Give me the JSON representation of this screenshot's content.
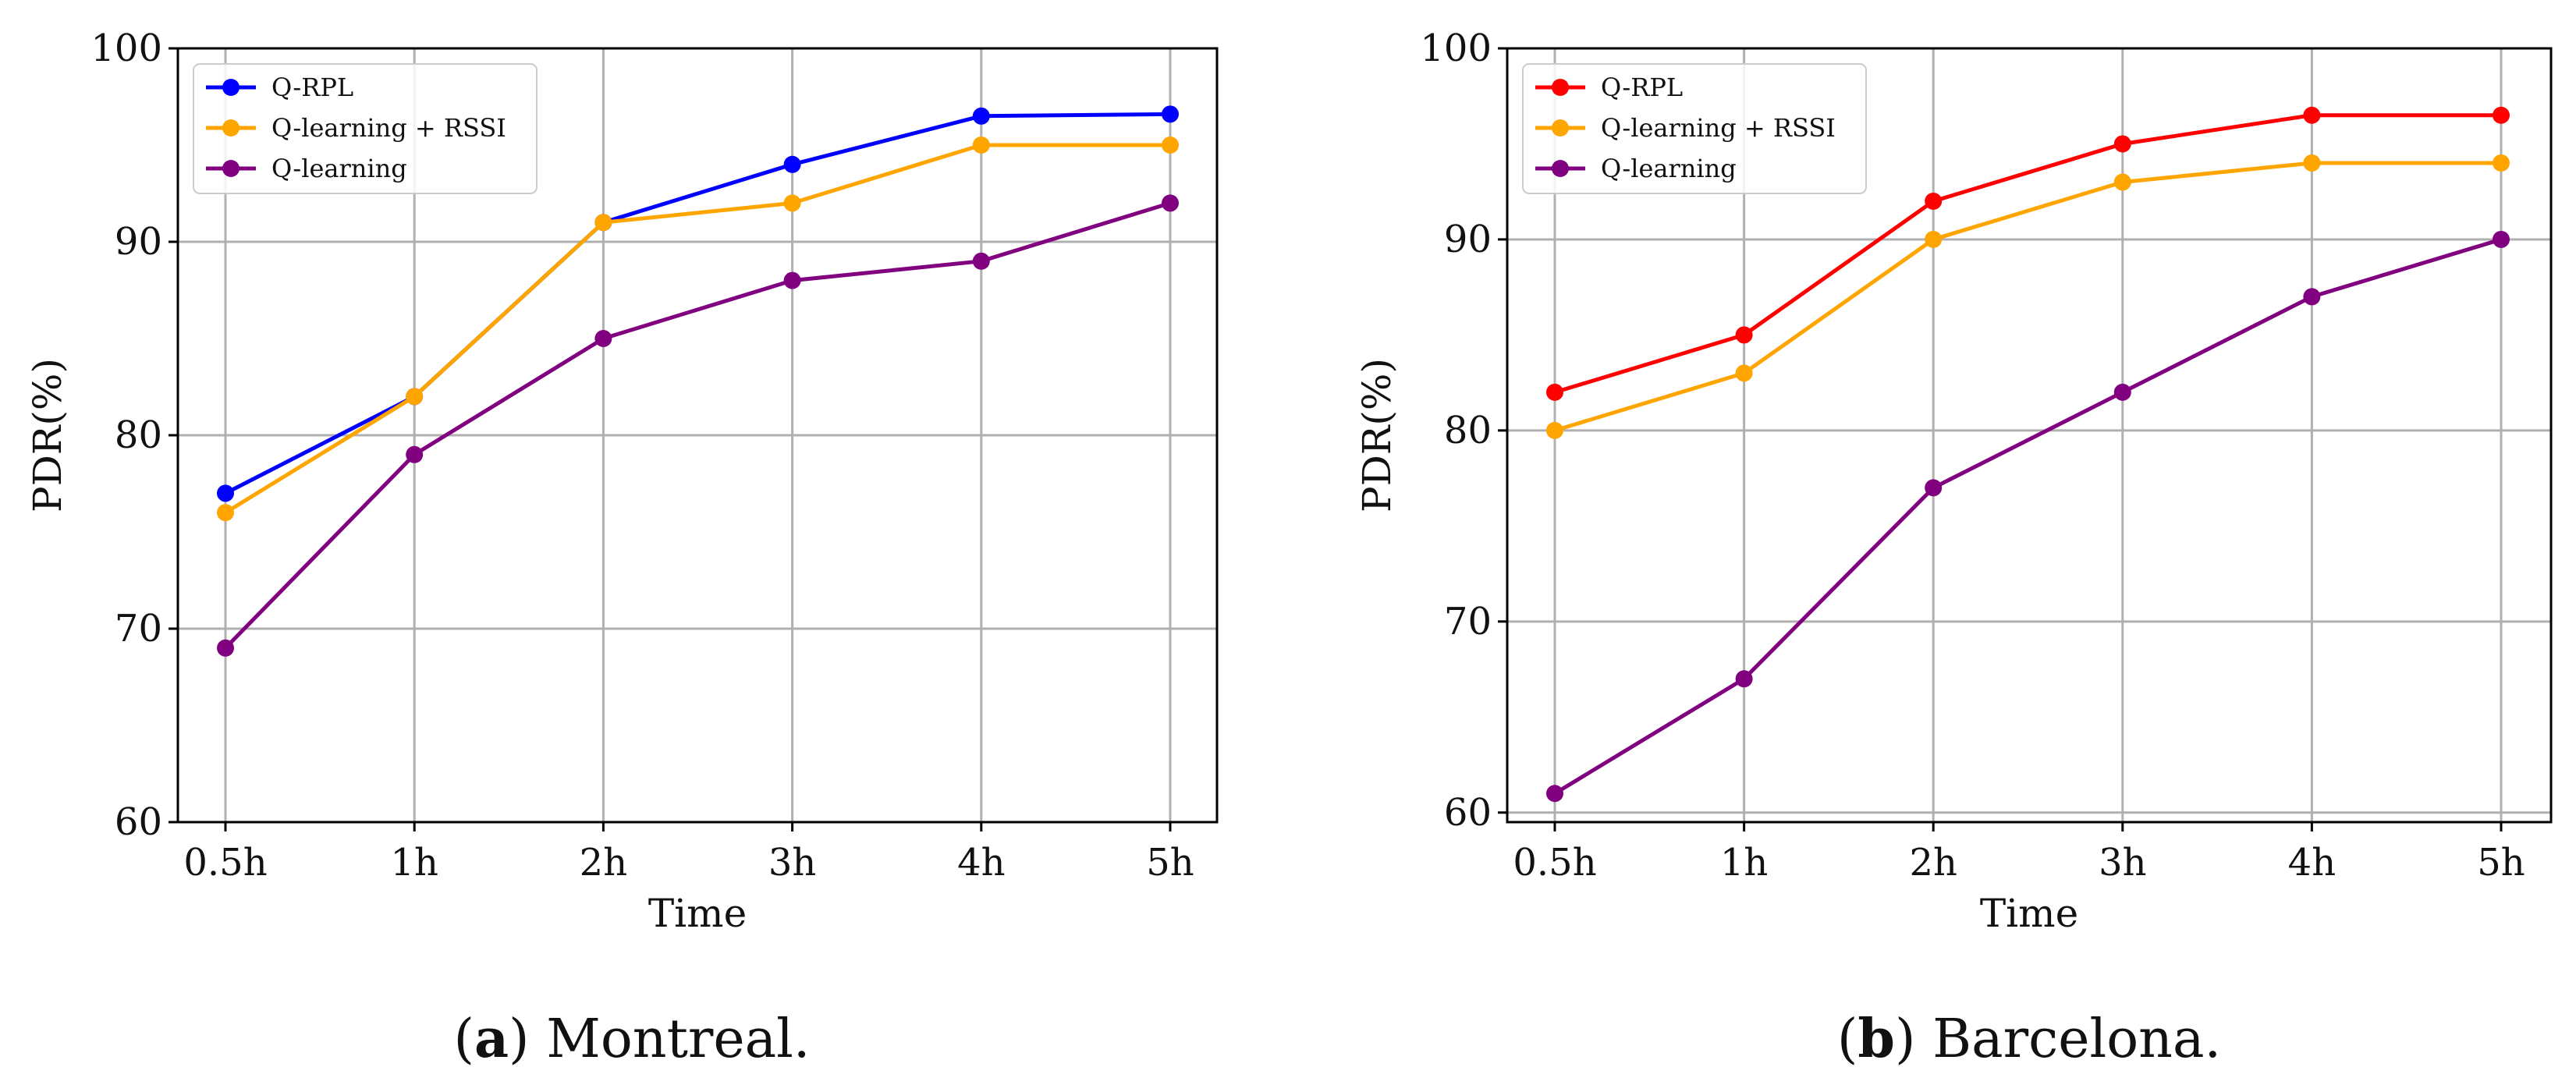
{
  "chart_data": [
    {
      "type": "line",
      "caption_letter": "a",
      "caption_text": "Montreal.",
      "title": "",
      "xlabel": "Time",
      "ylabel": "PDR(%)",
      "categories": [
        "0.5h",
        "1h",
        "2h",
        "3h",
        "4h",
        "5h"
      ],
      "ylim": [
        60,
        100
      ],
      "yticks": [
        60,
        70,
        80,
        90,
        100
      ],
      "grid": true,
      "legend_position": "top-left",
      "series": [
        {
          "name": "Q-RPL",
          "color": "#0000ff",
          "values": [
            77,
            82,
            91,
            94,
            96.5,
            96.6
          ]
        },
        {
          "name": "Q-learning + RSSI",
          "color": "#ffa500",
          "values": [
            76,
            82,
            91,
            92,
            95,
            95
          ]
        },
        {
          "name": "Q-learning",
          "color": "#800080",
          "values": [
            69,
            79,
            85,
            88,
            89,
            92
          ]
        }
      ]
    },
    {
      "type": "line",
      "caption_letter": "b",
      "caption_text": "Barcelona.",
      "title": "",
      "xlabel": "Time",
      "ylabel": "PDR(%)",
      "categories": [
        "0.5h",
        "1h",
        "2h",
        "3h",
        "4h",
        "5h"
      ],
      "ylim": [
        59.5,
        100
      ],
      "yticks": [
        60,
        70,
        80,
        90,
        100
      ],
      "grid": true,
      "legend_position": "top-left",
      "series": [
        {
          "name": "Q-RPL",
          "color": "#ff0000",
          "values": [
            82,
            85,
            92,
            95,
            96.5,
            96.5
          ]
        },
        {
          "name": "Q-learning + RSSI",
          "color": "#ffa500",
          "values": [
            80,
            83,
            90,
            93,
            94,
            94
          ]
        },
        {
          "name": "Q-learning",
          "color": "#800080",
          "values": [
            61,
            67,
            77,
            82,
            87,
            90
          ]
        }
      ]
    }
  ]
}
